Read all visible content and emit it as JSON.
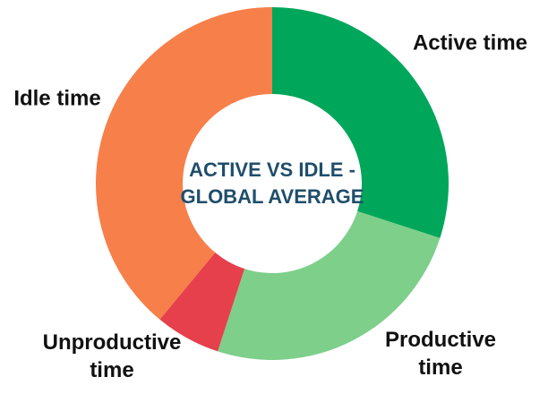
{
  "chart_data": {
    "type": "donut",
    "title": "ACTIVE VS IDLE - GLOBAL AVERAGE",
    "categories": [
      "Active time",
      "Productive time",
      "Unproductive time",
      "Idle time"
    ],
    "values": [
      30,
      25,
      6,
      39
    ],
    "colors": [
      "#00a65a",
      "#7dcf8a",
      "#e5404b",
      "#f77f4a"
    ]
  }
}
